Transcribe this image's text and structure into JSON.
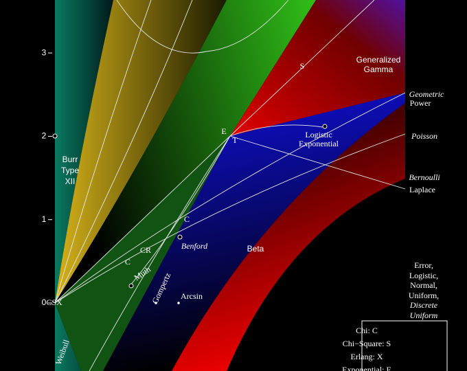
{
  "axis": {
    "yticks": [
      0,
      1,
      2,
      3
    ]
  },
  "labels": [
    {
      "text": "Generalized"
    },
    {
      "text": "Gamma"
    },
    {
      "text": "Geometric"
    },
    {
      "text": "Power"
    },
    {
      "text": "Logistic"
    },
    {
      "text": "Exponential"
    },
    {
      "text": "Poisson"
    },
    {
      "text": "Bernoulli"
    },
    {
      "text": "Laplace"
    },
    {
      "text": "Burr"
    },
    {
      "text": "Type"
    },
    {
      "text": "XII"
    },
    {
      "text": "Beta"
    },
    {
      "text": "Benford"
    },
    {
      "text": "CR"
    },
    {
      "text": "Muth"
    },
    {
      "text": "Gompertz"
    },
    {
      "text": "Arcsin"
    },
    {
      "text": "CSX"
    },
    {
      "text": "Weibull"
    },
    {
      "text": "S"
    },
    {
      "text": "E"
    },
    {
      "text": "T"
    },
    {
      "text": "C"
    },
    {
      "text": "C"
    },
    {
      "text": "Error,"
    },
    {
      "text": "Logistic,"
    },
    {
      "text": "Normal,"
    },
    {
      "text": "Uniform,"
    },
    {
      "text": "Discrete"
    },
    {
      "text": "Uniform"
    }
  ],
  "legend": [
    "Chi: C",
    "Chi−Square: S",
    "Erlang: X",
    "Exponential: E"
  ]
}
